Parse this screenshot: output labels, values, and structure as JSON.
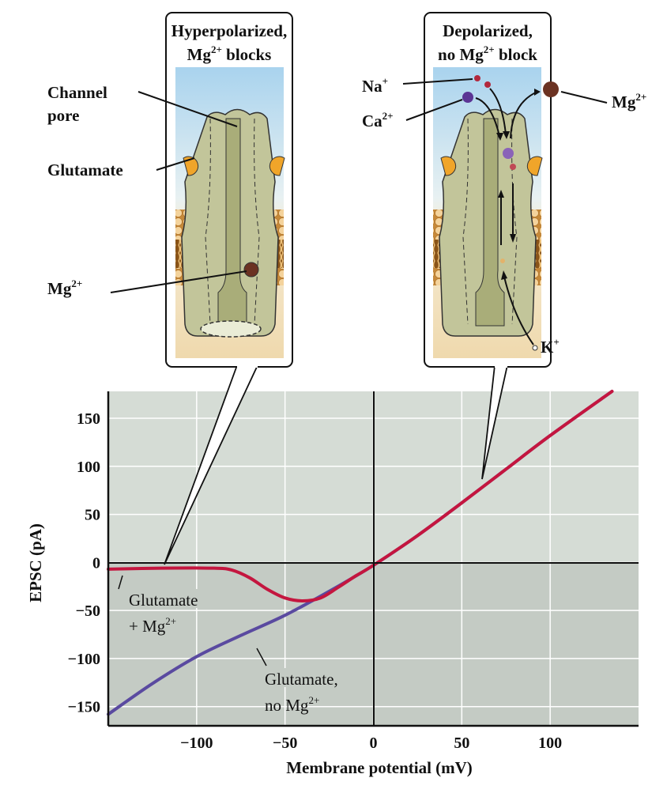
{
  "panels": {
    "left": {
      "title_line1": "Hyperpolarized,",
      "title_line2_pre": "Mg",
      "title_line2_sup": "2+",
      "title_line2_post": " blocks"
    },
    "right": {
      "title_line1": "Depolarized,",
      "title_line2_pre": "no Mg",
      "title_line2_sup": "2+",
      "title_line2_post": " block"
    }
  },
  "labels": {
    "channel_pore_1": "Channel",
    "channel_pore_2": "pore",
    "glutamate": "Glutamate",
    "mg_left": "Mg",
    "mg_left_sup": "2+",
    "na": "Na",
    "na_sup": "+",
    "ca": "Ca",
    "ca_sup": "2+",
    "mg_right": "Mg",
    "mg_right_sup": "2+",
    "k": "K",
    "k_sup": "+"
  },
  "colors": {
    "with_mg": "#c4163f",
    "no_mg": "#5a4aa0",
    "plot_bg_pos": "#d5dcd5",
    "plot_bg_neg": "#c4cbc4"
  },
  "chart_data": {
    "type": "line",
    "xlabel": "Membrane potential (mV)",
    "ylabel": "EPSC (pA)",
    "xlim": [
      -150,
      150
    ],
    "ylim": [
      -170,
      178
    ],
    "xticks": [
      -100,
      -50,
      0,
      50,
      100
    ],
    "xtick_labels": [
      "−100",
      "−50",
      "0",
      "50",
      "100"
    ],
    "yticks": [
      150,
      100,
      50,
      0,
      -50,
      -100,
      -150
    ],
    "ytick_labels": [
      "150",
      "100",
      "50",
      "0",
      "−50",
      "−100",
      "−150"
    ],
    "grid": true,
    "series": [
      {
        "name_line1": "Glutamate",
        "name_line2_pre": "+ Mg",
        "name_line2_sup": "2+",
        "color": "#c4163f",
        "x": [
          -150,
          -120,
          -90,
          -80,
          -70,
          -60,
          -50,
          -40,
          -30,
          -20,
          -10,
          0,
          25,
          50,
          75,
          100,
          135
        ],
        "y": [
          -7,
          -6,
          -6,
          -8,
          -16,
          -28,
          -37,
          -40,
          -37,
          -26,
          -14,
          -3,
          28,
          62,
          97,
          132,
          178
        ]
      },
      {
        "name_line1": "Glutamate,",
        "name_line2_pre": "no Mg",
        "name_line2_sup": "2+",
        "color": "#5a4aa0",
        "x": [
          -150,
          -125,
          -100,
          -75,
          -50,
          -25,
          0,
          25,
          50,
          75,
          100,
          135
        ],
        "y": [
          -158,
          -126,
          -98,
          -76,
          -55,
          -30,
          -3,
          28,
          62,
          97,
          132,
          178
        ]
      }
    ]
  }
}
